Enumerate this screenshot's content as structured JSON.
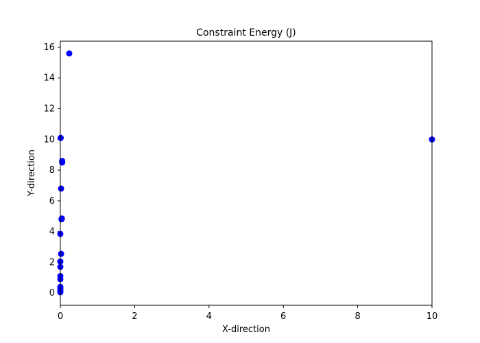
{
  "chart_data": {
    "type": "scatter",
    "title": "Constraint Energy (J)",
    "xlabel": "X-direction",
    "ylabel": "Y-direction",
    "xlim": [
      0,
      10
    ],
    "ylim": [
      -0.8,
      16.4
    ],
    "xticks": [
      0,
      2,
      4,
      6,
      8,
      10
    ],
    "yticks": [
      0,
      2,
      4,
      6,
      8,
      10,
      12,
      14,
      16
    ],
    "grid": false,
    "legend": "none",
    "marker_color": "#0000ff",
    "series": [
      {
        "x": [
          0.24,
          0.01,
          0.05,
          0.05,
          0.02,
          0.04,
          0.03,
          0.0,
          0.02,
          0.0,
          0.0,
          0.0,
          0.0,
          0.0,
          0.0,
          0.0,
          0.0,
          10.0
        ],
        "y": [
          15.6,
          10.1,
          8.6,
          8.5,
          6.8,
          4.85,
          4.8,
          3.85,
          2.55,
          2.05,
          1.7,
          1.1,
          0.9,
          0.4,
          0.3,
          0.15,
          0.05,
          10.0
        ]
      }
    ]
  }
}
